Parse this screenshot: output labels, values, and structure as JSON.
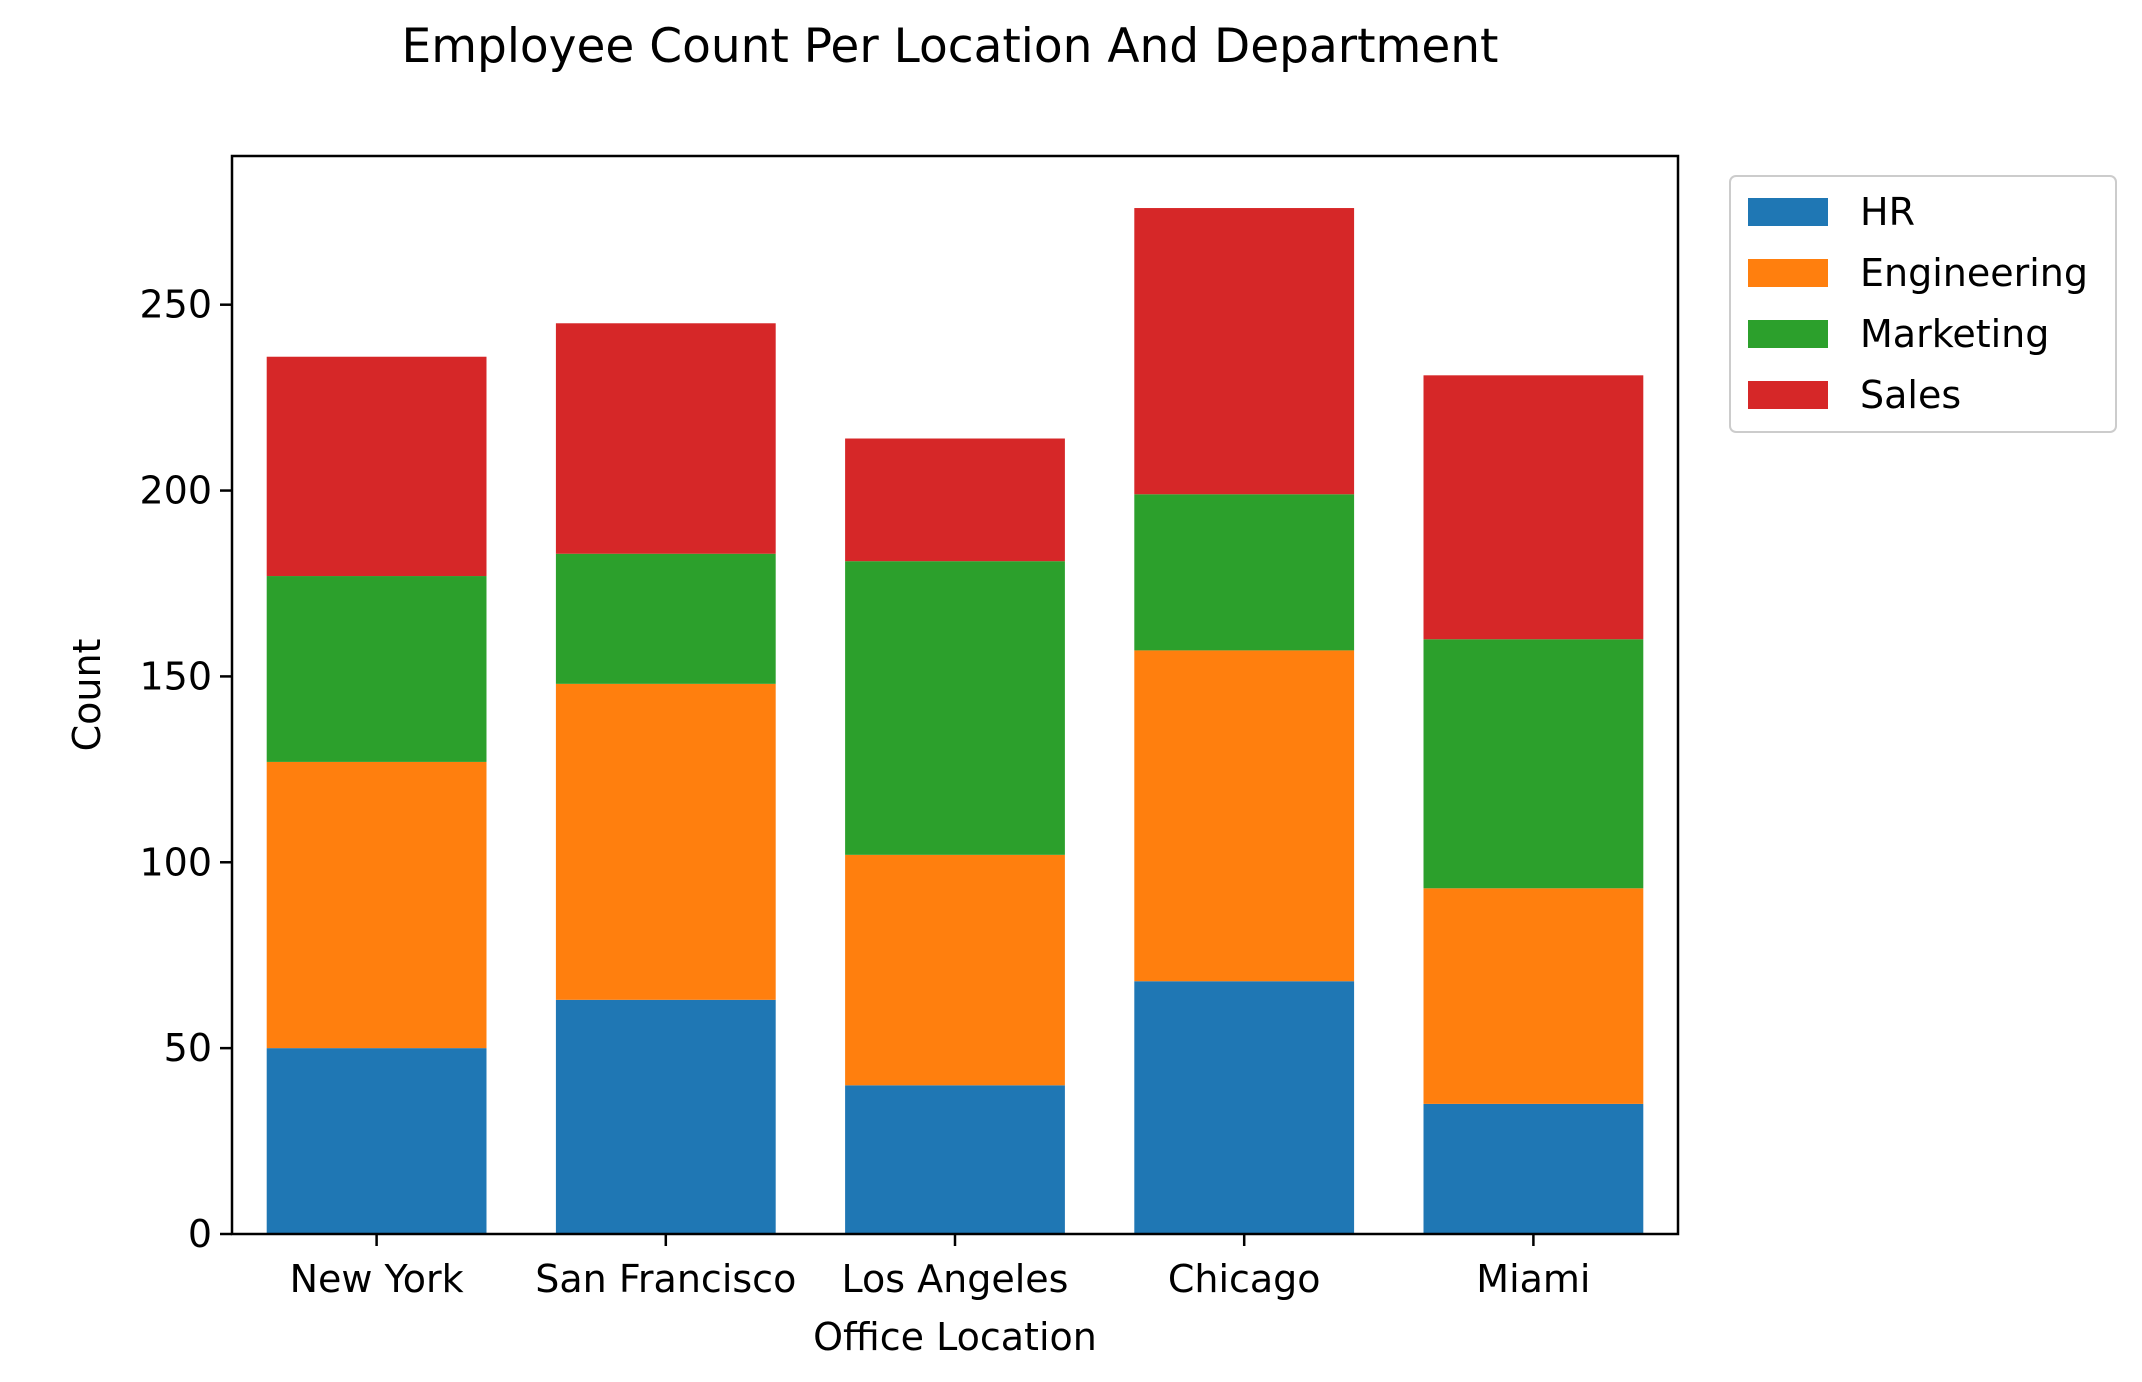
{
  "chart_data": {
    "type": "bar",
    "stacked": true,
    "title": "Employee Count Per Location And Department",
    "xlabel": "Office Location",
    "ylabel": "Count",
    "categories": [
      "New York",
      "San Francisco",
      "Los Angeles",
      "Chicago",
      "Miami"
    ],
    "series": [
      {
        "name": "HR",
        "color": "#1f77b4",
        "values": [
          50,
          63,
          40,
          68,
          35
        ]
      },
      {
        "name": "Engineering",
        "color": "#ff7f0e",
        "values": [
          77,
          85,
          62,
          89,
          58
        ]
      },
      {
        "name": "Marketing",
        "color": "#2ca02c",
        "values": [
          50,
          35,
          79,
          42,
          67
        ]
      },
      {
        "name": "Sales",
        "color": "#d62728",
        "values": [
          59,
          62,
          33,
          77,
          71
        ]
      }
    ],
    "ylim": [
      0,
      290
    ],
    "yticks": [
      0,
      50,
      100,
      150,
      200,
      250
    ],
    "grid": false,
    "legend_position": "outside-top-right"
  }
}
